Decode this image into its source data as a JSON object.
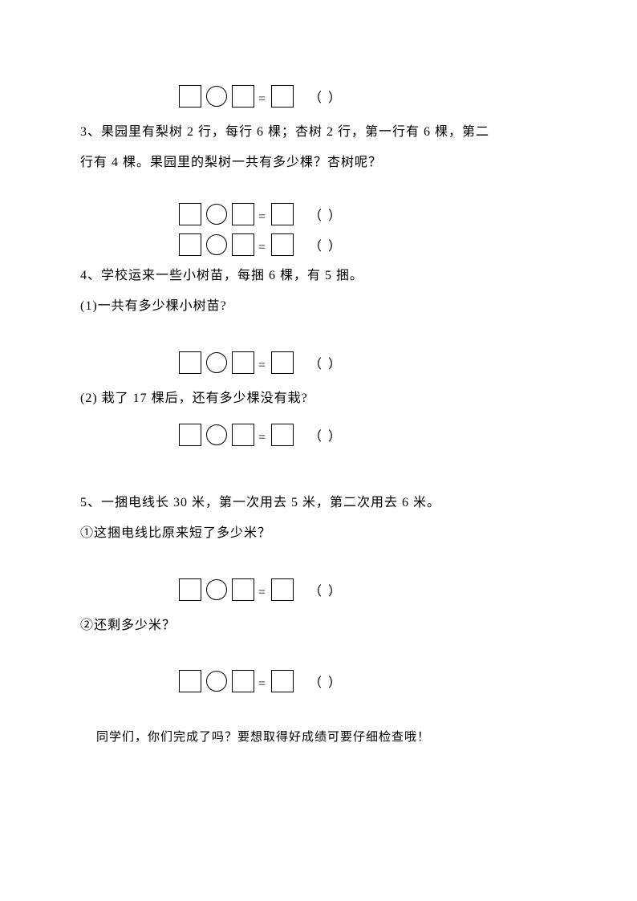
{
  "equation_paren": "（       ）",
  "equals": "=",
  "q3": {
    "line1": "3、果园里有梨树 2 行，每行 6 棵；杏树 2 行，第一行有 6 棵，第二",
    "line2": "行有 4 棵。果园里的梨树一共有多少棵？杏树呢？"
  },
  "q4": {
    "intro": "4、学校运来一些小树苗，每捆 6 棵，有 5 捆。",
    "part1": "(1)一共有多少棵小树苗?",
    "part2": "(2) 栽了 17 棵后，还有多少棵没有栽?"
  },
  "q5": {
    "intro": "5、一捆电线长 30 米，第一次用去 5 米，第二次用去 6 米。",
    "part1": "①这捆电线比原来短了多少米？",
    "part2": "②还剩多少米？"
  },
  "footer": "同学们，你们完成了吗？要想取得好成绩可要仔细检查哦！"
}
